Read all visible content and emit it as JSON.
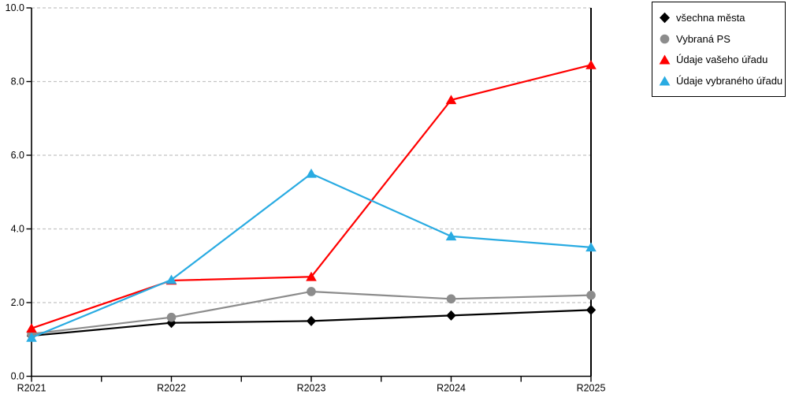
{
  "chart_data": {
    "type": "line",
    "title": "",
    "xlabel": "",
    "ylabel": "",
    "categories": [
      "R2021",
      "R2022",
      "R2023",
      "R2024",
      "R2025"
    ],
    "series": [
      {
        "name": "všechna města",
        "marker": "diamond",
        "color": "#000000",
        "values": [
          1.1,
          1.45,
          1.5,
          1.65,
          1.8
        ]
      },
      {
        "name": "Vybraná PS",
        "marker": "circle",
        "color": "#8c8c8c",
        "values": [
          1.15,
          1.6,
          2.3,
          2.1,
          2.2
        ]
      },
      {
        "name": "Údaje vašeho úřadu",
        "marker": "triangle",
        "color": "#ff0000",
        "values": [
          1.3,
          2.6,
          2.7,
          7.5,
          8.45
        ]
      },
      {
        "name": "Údaje vybraného úřadu",
        "marker": "triangle",
        "color": "#29abe2",
        "values": [
          1.05,
          2.62,
          5.5,
          3.8,
          3.5
        ]
      }
    ],
    "ylim": [
      0,
      10
    ],
    "y_ticks": [
      0,
      2,
      4,
      6,
      8,
      10
    ],
    "y_tick_labels": [
      "0.0",
      "2.0",
      "4.0",
      "6.0",
      "8.0",
      "10.0"
    ],
    "grid": "horizontal-dashed",
    "minor_x_ticks_between_categories": true,
    "legend_position": "top-right"
  },
  "colors": {
    "background": "#ffffff",
    "grid": "#c4c4c4",
    "axis": "#000000",
    "tick_label": "#000000"
  }
}
